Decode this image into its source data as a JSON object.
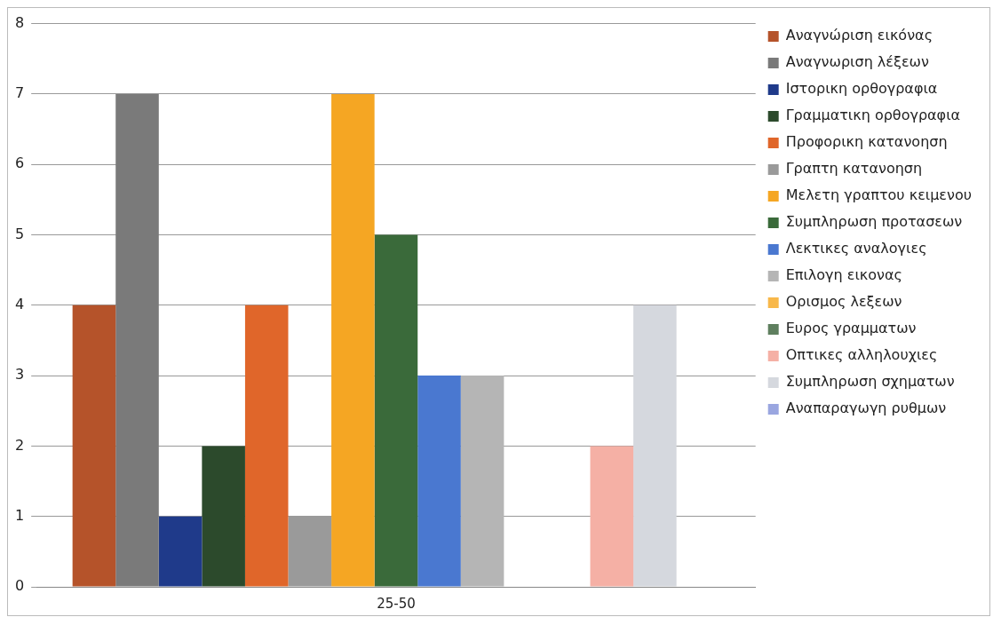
{
  "chart_data": {
    "type": "bar",
    "categories": [
      "25-50"
    ],
    "ylim": [
      0,
      8
    ],
    "yticks": [
      0,
      1,
      2,
      3,
      4,
      5,
      6,
      7,
      8
    ],
    "grid": "y",
    "legend": "right",
    "series": [
      {
        "name": "Αναγνώριση εικόνας",
        "color": "#b5532a",
        "values": [
          4
        ]
      },
      {
        "name": "Αναγνωριση λέξεων",
        "color": "#7a7a7a",
        "values": [
          7
        ]
      },
      {
        "name": "Ιστορικη ορθογραφια",
        "color": "#1f3a8a",
        "values": [
          1
        ]
      },
      {
        "name": "Γραμματικη ορθογραφια",
        "color": "#2c4a2c",
        "values": [
          2
        ]
      },
      {
        "name": "Προφορικη κατανοηση",
        "color": "#e0662a",
        "values": [
          4
        ]
      },
      {
        "name": "Γραπτη κατανοηση",
        "color": "#9a9a9a",
        "values": [
          1
        ]
      },
      {
        "name": "Μελετη γραπτου κειμενου",
        "color": "#f5a623",
        "values": [
          7
        ]
      },
      {
        "name": "Συμπληρωση προτασεων",
        "color": "#3a6a3a",
        "values": [
          5
        ]
      },
      {
        "name": "Λεκτικες αναλογιες",
        "color": "#4a78d0",
        "values": [
          3
        ]
      },
      {
        "name": "Επιλογη εικονας",
        "color": "#b5b5b5",
        "values": [
          3
        ]
      },
      {
        "name": "Ορισμος λεξεων",
        "color": "#f8b84a",
        "values": [
          0
        ]
      },
      {
        "name": "Ευρος γραμματων",
        "color": "#5f7f5f",
        "values": [
          0
        ]
      },
      {
        "name": "Οπτικες αλληλουχιες",
        "color": "#f5b0a5",
        "values": [
          2
        ]
      },
      {
        "name": "Συμπληρωση σχηματων",
        "color": "#d5d8de",
        "values": [
          4
        ]
      },
      {
        "name": "Αναπαραγωγη ρυθμων",
        "color": "#9aa6e0",
        "values": [
          0
        ]
      }
    ]
  }
}
